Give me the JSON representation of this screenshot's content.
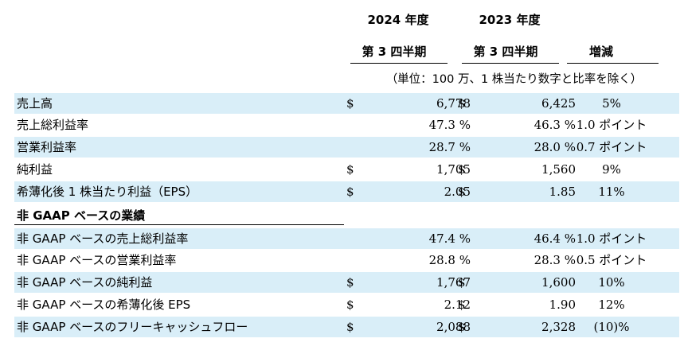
{
  "header": {
    "year_2024": "2024 年度",
    "year_2023": "2023 年度",
    "q3_2024": "第 3 四半期",
    "q3_2023": "第 3 四半期",
    "change": "増減",
    "unit_note": "（単位：100 万、1 株当たり数字と比率を除く）"
  },
  "rows": [
    {
      "label": "売上高",
      "d1": "$",
      "v1": "6,778",
      "d2": "$",
      "v2": "6,425",
      "chg": "5%"
    },
    {
      "label": "売上総利益率",
      "d1": "",
      "v1": "47.3 %",
      "d2": "",
      "v2": "46.3 %",
      "chg": "1.0 ポイント"
    },
    {
      "label": "営業利益率",
      "d1": "",
      "v1": "28.7 %",
      "d2": "",
      "v2": "28.0 %",
      "chg": "0.7 ポイント"
    },
    {
      "label": "純利益",
      "d1": "$",
      "v1": "1,705",
      "d2": "$",
      "v2": "1,560",
      "chg": "9%"
    },
    {
      "label": "希薄化後 1 株当たり利益（EPS）",
      "d1": "$",
      "v1": "2.05",
      "d2": "$",
      "v2": "1.85",
      "chg": "11%"
    }
  ],
  "section_title": "非 GAAP ベースの業績",
  "nongaap_rows": [
    {
      "label": "非 GAAP ベースの売上総利益率",
      "d1": "",
      "v1": "47.4 %",
      "d2": "",
      "v2": "46.4 %",
      "chg": "1.0 ポイント"
    },
    {
      "label": "非 GAAP ベースの営業利益率",
      "d1": "",
      "v1": "28.8 %",
      "d2": "",
      "v2": "28.3 %",
      "chg": "0.5 ポイント"
    },
    {
      "label": "非 GAAP ベースの純利益",
      "d1": "$",
      "v1": "1,767",
      "d2": "$",
      "v2": "1,600",
      "chg": "10%"
    },
    {
      "label": "非 GAAP ベースの希薄化後 EPS",
      "d1": "$",
      "v1": "2.12",
      "d2": "$",
      "v2": "1.90",
      "chg": "12%"
    },
    {
      "label": "非 GAAP ベースのフリーキャッシュフロー",
      "d1": "$",
      "v1": "2,088",
      "d2": "$",
      "v2": "2,328",
      "chg": "(10)%"
    }
  ]
}
